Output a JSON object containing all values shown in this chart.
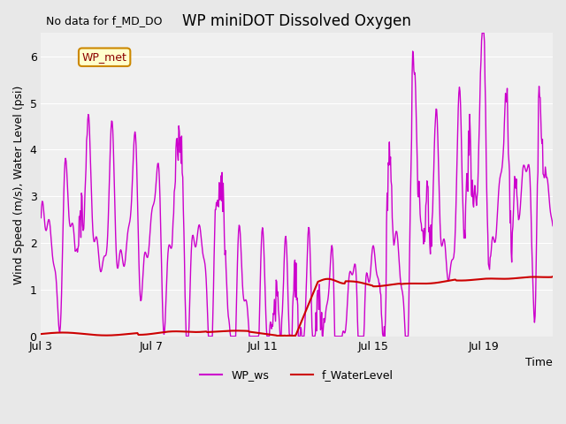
{
  "title": "WP miniDOT Dissolved Oxygen",
  "no_data_label": "No data for f_MD_DO",
  "ylabel": "Wind Speed (m/s), Water Level (psi)",
  "xlabel": "Time",
  "legend_label": "WP_met",
  "ylim": [
    0.0,
    6.5
  ],
  "xlim": [
    0,
    18.5
  ],
  "x_ticks_labels": [
    "Jul 3",
    "Jul 7",
    "Jul 11",
    "Jul 15",
    "Jul 19"
  ],
  "x_ticks_pos": [
    0,
    4,
    8,
    12,
    16
  ],
  "bg_color": "#e8e8e8",
  "plot_bg_color": "#f0f0f0",
  "wp_ws_color": "#cc00cc",
  "f_waterlevel_color": "#cc0000",
  "legend_line_labels": [
    "WP_ws",
    "f_WaterLevel"
  ],
  "wp_ws_lw": 1.0,
  "f_wl_lw": 1.5
}
